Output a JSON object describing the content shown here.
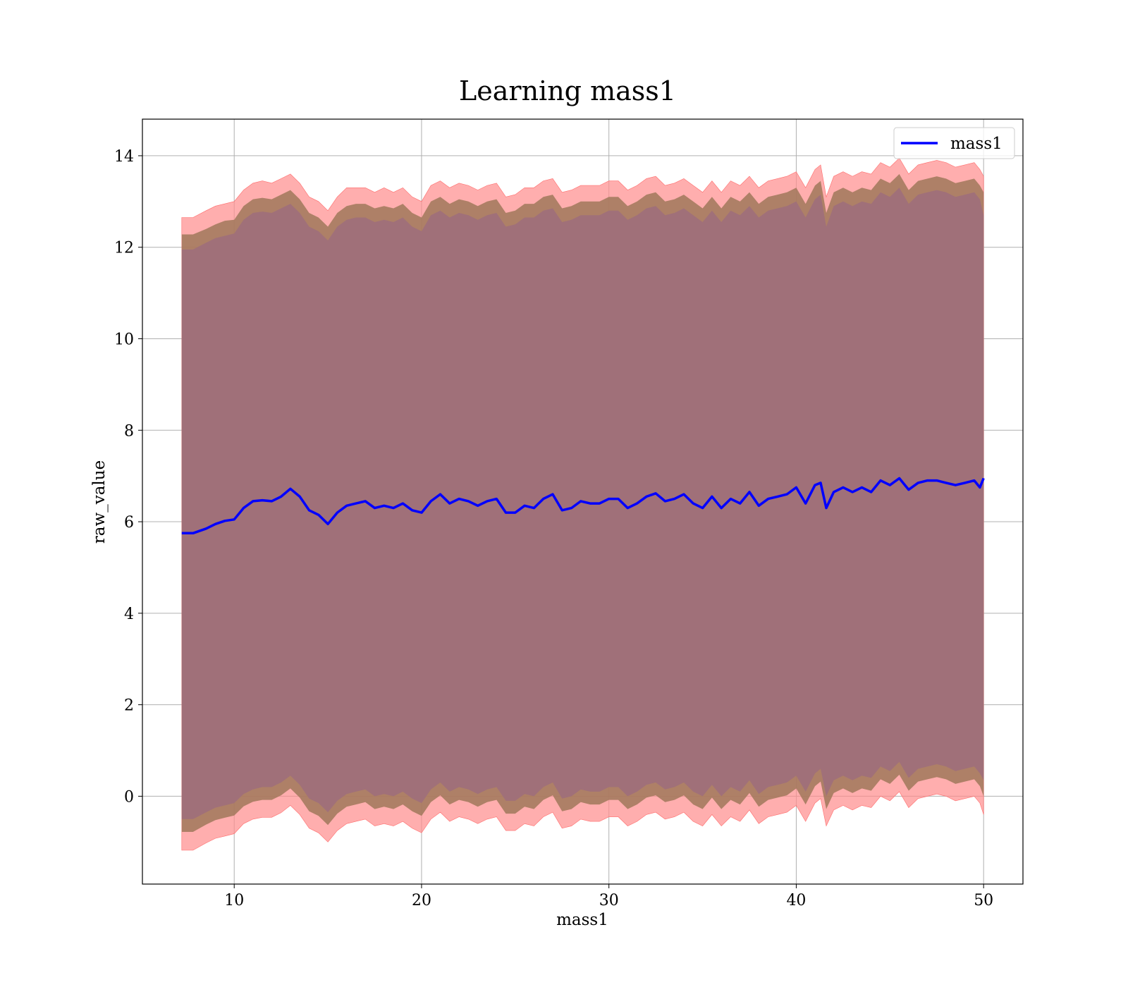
{
  "chart_data": {
    "type": "area",
    "title": "Learning mass1",
    "xlabel": "mass1",
    "ylabel": "raw_value",
    "xlim": [
      5.1,
      52.1
    ],
    "ylim": [
      -1.92,
      14.8
    ],
    "x_ticks": [
      10,
      20,
      30,
      40,
      50
    ],
    "y_ticks": [
      0,
      2,
      4,
      6,
      8,
      10,
      12,
      14
    ],
    "grid": true,
    "legend": {
      "position": "top-right",
      "entries": [
        "mass1"
      ]
    },
    "colors": {
      "line": "#0000ff",
      "band_outer": "#ff8c8c",
      "band_middle": "#a0785a",
      "band_inner": "#a07079",
      "grid": "#b0b0b0"
    },
    "series": [
      {
        "name": "mass1",
        "x": [
          7.2,
          7.8,
          8.5,
          9.0,
          9.5,
          10.0,
          10.5,
          11.0,
          11.5,
          12.0,
          12.5,
          13.0,
          13.5,
          14.0,
          14.5,
          15.0,
          15.5,
          16.0,
          16.5,
          17.0,
          17.5,
          18.0,
          18.5,
          19.0,
          19.5,
          20.0,
          20.5,
          21.0,
          21.5,
          22.0,
          22.5,
          23.0,
          23.5,
          24.0,
          24.5,
          25.0,
          25.5,
          26.0,
          26.5,
          27.0,
          27.5,
          28.0,
          28.5,
          29.0,
          29.5,
          30.0,
          30.5,
          31.0,
          31.5,
          32.0,
          32.5,
          33.0,
          33.5,
          34.0,
          34.5,
          35.0,
          35.5,
          36.0,
          36.5,
          37.0,
          37.5,
          38.0,
          38.5,
          39.0,
          39.5,
          40.0,
          40.5,
          41.0,
          41.3,
          41.6,
          42.0,
          42.5,
          43.0,
          43.5,
          44.0,
          44.5,
          45.0,
          45.5,
          46.0,
          46.5,
          47.0,
          47.5,
          48.0,
          48.5,
          49.0,
          49.5,
          49.8,
          50.0
        ],
        "mean": [
          5.75,
          5.75,
          5.85,
          5.95,
          6.02,
          6.05,
          6.3,
          6.45,
          6.47,
          6.45,
          6.55,
          6.72,
          6.55,
          6.25,
          6.15,
          5.95,
          6.2,
          6.35,
          6.4,
          6.45,
          6.3,
          6.35,
          6.3,
          6.4,
          6.25,
          6.2,
          6.45,
          6.6,
          6.4,
          6.5,
          6.45,
          6.35,
          6.45,
          6.5,
          6.2,
          6.2,
          6.35,
          6.3,
          6.5,
          6.6,
          6.25,
          6.3,
          6.45,
          6.4,
          6.4,
          6.5,
          6.5,
          6.3,
          6.4,
          6.55,
          6.62,
          6.45,
          6.5,
          6.6,
          6.4,
          6.3,
          6.55,
          6.3,
          6.5,
          6.4,
          6.65,
          6.35,
          6.5,
          6.55,
          6.6,
          6.75,
          6.4,
          6.8,
          6.85,
          6.3,
          6.65,
          6.75,
          6.65,
          6.75,
          6.65,
          6.9,
          6.8,
          6.95,
          6.7,
          6.85,
          6.9,
          6.9,
          6.85,
          6.8,
          6.85,
          6.9,
          6.75,
          6.95
        ],
        "upper_outer": [
          12.65,
          12.65,
          12.8,
          12.9,
          12.95,
          13.0,
          13.25,
          13.4,
          13.45,
          13.4,
          13.5,
          13.6,
          13.4,
          13.1,
          13.0,
          12.8,
          13.1,
          13.3,
          13.3,
          13.3,
          13.2,
          13.3,
          13.2,
          13.3,
          13.1,
          13.0,
          13.35,
          13.45,
          13.3,
          13.4,
          13.35,
          13.25,
          13.35,
          13.4,
          13.1,
          13.15,
          13.3,
          13.3,
          13.45,
          13.5,
          13.2,
          13.25,
          13.35,
          13.35,
          13.35,
          13.45,
          13.45,
          13.25,
          13.35,
          13.5,
          13.55,
          13.35,
          13.4,
          13.5,
          13.35,
          13.2,
          13.45,
          13.2,
          13.45,
          13.35,
          13.55,
          13.3,
          13.45,
          13.5,
          13.55,
          13.65,
          13.3,
          13.7,
          13.8,
          13.1,
          13.55,
          13.65,
          13.55,
          13.65,
          13.6,
          13.85,
          13.75,
          13.95,
          13.6,
          13.8,
          13.85,
          13.9,
          13.85,
          13.75,
          13.8,
          13.85,
          13.7,
          13.55
        ],
        "upper_middle": [
          12.28,
          12.28,
          12.4,
          12.5,
          12.58,
          12.6,
          12.9,
          13.05,
          13.08,
          13.05,
          13.15,
          13.25,
          13.05,
          12.75,
          12.65,
          12.45,
          12.75,
          12.9,
          12.95,
          12.95,
          12.85,
          12.9,
          12.85,
          12.95,
          12.75,
          12.65,
          13.0,
          13.1,
          12.95,
          13.05,
          13.0,
          12.9,
          13.0,
          13.05,
          12.75,
          12.8,
          12.95,
          12.95,
          13.1,
          13.15,
          12.85,
          12.9,
          13.0,
          13.0,
          13.0,
          13.1,
          13.1,
          12.9,
          13.0,
          13.15,
          13.2,
          13.0,
          13.05,
          13.15,
          13.0,
          12.85,
          13.1,
          12.85,
          13.1,
          13.0,
          13.2,
          12.95,
          13.1,
          13.15,
          13.2,
          13.3,
          12.95,
          13.35,
          13.45,
          12.75,
          13.2,
          13.3,
          13.2,
          13.3,
          13.25,
          13.5,
          13.4,
          13.6,
          13.25,
          13.45,
          13.5,
          13.55,
          13.5,
          13.4,
          13.45,
          13.5,
          13.35,
          13.2
        ],
        "upper_inner": [
          11.95,
          11.95,
          12.1,
          12.2,
          12.25,
          12.3,
          12.6,
          12.75,
          12.78,
          12.75,
          12.85,
          12.95,
          12.75,
          12.45,
          12.35,
          12.15,
          12.45,
          12.6,
          12.65,
          12.65,
          12.55,
          12.6,
          12.55,
          12.65,
          12.45,
          12.35,
          12.7,
          12.8,
          12.65,
          12.75,
          12.7,
          12.6,
          12.7,
          12.75,
          12.45,
          12.5,
          12.65,
          12.65,
          12.8,
          12.85,
          12.55,
          12.6,
          12.7,
          12.7,
          12.7,
          12.8,
          12.8,
          12.6,
          12.7,
          12.85,
          12.9,
          12.7,
          12.75,
          12.85,
          12.7,
          12.55,
          12.8,
          12.55,
          12.8,
          12.7,
          12.9,
          12.65,
          12.8,
          12.85,
          12.9,
          13.0,
          12.65,
          13.05,
          13.15,
          12.45,
          12.9,
          13.0,
          12.9,
          13.0,
          12.95,
          13.2,
          13.1,
          13.3,
          12.95,
          13.15,
          13.2,
          13.25,
          13.2,
          13.1,
          13.15,
          13.2,
          13.05,
          12.7
        ],
        "lower_inner": [
          -0.5,
          -0.5,
          -0.35,
          -0.25,
          -0.2,
          -0.15,
          0.05,
          0.15,
          0.2,
          0.2,
          0.3,
          0.45,
          0.25,
          -0.05,
          -0.15,
          -0.35,
          -0.1,
          0.05,
          0.1,
          0.15,
          0.0,
          0.05,
          0.0,
          0.1,
          -0.05,
          -0.15,
          0.15,
          0.3,
          0.1,
          0.2,
          0.15,
          0.05,
          0.15,
          0.2,
          -0.1,
          -0.1,
          0.05,
          0.0,
          0.2,
          0.3,
          -0.05,
          0.0,
          0.15,
          0.1,
          0.1,
          0.2,
          0.2,
          0.0,
          0.1,
          0.25,
          0.3,
          0.15,
          0.2,
          0.3,
          0.1,
          0.0,
          0.25,
          0.0,
          0.2,
          0.1,
          0.35,
          0.05,
          0.2,
          0.25,
          0.3,
          0.45,
          0.1,
          0.5,
          0.6,
          -0.0,
          0.35,
          0.45,
          0.35,
          0.45,
          0.4,
          0.65,
          0.55,
          0.75,
          0.4,
          0.6,
          0.65,
          0.7,
          0.65,
          0.55,
          0.6,
          0.65,
          0.5,
          0.35
        ],
        "lower_middle": [
          -0.78,
          -0.78,
          -0.62,
          -0.52,
          -0.47,
          -0.42,
          -0.22,
          -0.12,
          -0.08,
          -0.08,
          0.02,
          0.17,
          -0.03,
          -0.33,
          -0.43,
          -0.63,
          -0.38,
          -0.23,
          -0.18,
          -0.13,
          -0.28,
          -0.23,
          -0.28,
          -0.18,
          -0.33,
          -0.43,
          -0.13,
          0.02,
          -0.18,
          -0.08,
          -0.13,
          -0.23,
          -0.13,
          -0.08,
          -0.38,
          -0.38,
          -0.23,
          -0.28,
          -0.08,
          0.02,
          -0.33,
          -0.28,
          -0.13,
          -0.18,
          -0.18,
          -0.08,
          -0.08,
          -0.28,
          -0.18,
          -0.03,
          0.02,
          -0.13,
          -0.08,
          0.02,
          -0.18,
          -0.28,
          -0.03,
          -0.28,
          -0.08,
          -0.18,
          0.07,
          -0.23,
          -0.08,
          -0.03,
          0.02,
          0.17,
          -0.18,
          0.22,
          0.32,
          -0.28,
          0.07,
          0.17,
          0.07,
          0.17,
          0.12,
          0.37,
          0.27,
          0.47,
          0.12,
          0.32,
          0.37,
          0.42,
          0.37,
          0.27,
          0.32,
          0.37,
          0.22,
          0.0
        ],
        "lower_outer": [
          -1.18,
          -1.18,
          -1.02,
          -0.92,
          -0.87,
          -0.82,
          -0.6,
          -0.5,
          -0.46,
          -0.46,
          -0.36,
          -0.2,
          -0.4,
          -0.7,
          -0.8,
          -1.0,
          -0.75,
          -0.6,
          -0.55,
          -0.5,
          -0.65,
          -0.6,
          -0.65,
          -0.55,
          -0.7,
          -0.8,
          -0.5,
          -0.35,
          -0.55,
          -0.45,
          -0.5,
          -0.6,
          -0.5,
          -0.45,
          -0.75,
          -0.75,
          -0.6,
          -0.65,
          -0.45,
          -0.35,
          -0.7,
          -0.65,
          -0.5,
          -0.55,
          -0.55,
          -0.45,
          -0.45,
          -0.65,
          -0.55,
          -0.4,
          -0.35,
          -0.5,
          -0.45,
          -0.35,
          -0.55,
          -0.65,
          -0.4,
          -0.65,
          -0.45,
          -0.55,
          -0.3,
          -0.6,
          -0.45,
          -0.4,
          -0.35,
          -0.2,
          -0.55,
          -0.15,
          -0.05,
          -0.65,
          -0.3,
          -0.2,
          -0.3,
          -0.2,
          -0.25,
          0.0,
          -0.1,
          0.1,
          -0.25,
          -0.05,
          0.0,
          0.05,
          0.0,
          -0.1,
          -0.05,
          0.0,
          -0.15,
          -0.4
        ]
      }
    ]
  }
}
